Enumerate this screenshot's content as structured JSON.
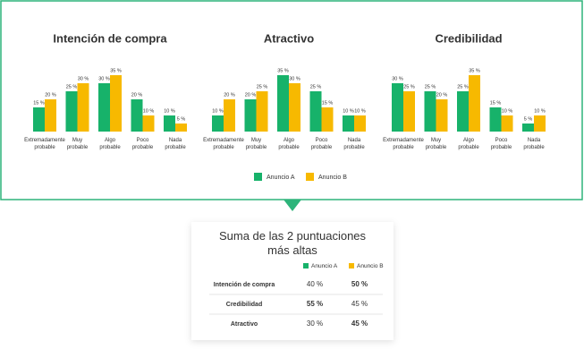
{
  "chart_data": [
    {
      "type": "bar",
      "title": "Intención de compra",
      "categories": [
        "Extremadamente probable",
        "Muy probable",
        "Algo probable",
        "Poco probable",
        "Nada probable"
      ],
      "series": [
        {
          "name": "Anuncio A",
          "color": "#17b26a",
          "values": [
            15,
            25,
            30,
            20,
            10
          ],
          "value_labels": [
            "15 %",
            "25 %",
            "30 %",
            "20 %",
            "10 %"
          ]
        },
        {
          "name": "Anuncio B",
          "color": "#f7b900",
          "values": [
            20,
            30,
            35,
            10,
            5
          ],
          "value_labels": [
            "20 %",
            "30 %",
            "35 %",
            "10 %",
            "5 %"
          ]
        }
      ]
    },
    {
      "type": "bar",
      "title": "Atractivo",
      "categories": [
        "Extremadamente probable",
        "Muy probable",
        "Algo probable",
        "Poco probable",
        "Nada probable"
      ],
      "series": [
        {
          "name": "Anuncio A",
          "color": "#17b26a",
          "values": [
            10,
            20,
            35,
            25,
            10
          ],
          "value_labels": [
            "10 %",
            "20 %",
            "35 %",
            "25 %",
            "10 %"
          ]
        },
        {
          "name": "Anuncio B",
          "color": "#f7b900",
          "values": [
            20,
            25,
            30,
            15,
            10
          ],
          "value_labels": [
            "20 %",
            "25 %",
            "30 %",
            "15 %",
            "10 %"
          ]
        }
      ]
    },
    {
      "type": "bar",
      "title": "Credibilidad",
      "categories": [
        "Extremadamente probable",
        "Muy probable",
        "Algo probable",
        "Poco probable",
        "Nada probable"
      ],
      "series": [
        {
          "name": "Anuncio A",
          "color": "#17b26a",
          "values": [
            30,
            25,
            25,
            15,
            5
          ],
          "value_labels": [
            "30 %",
            "25 %",
            "25 %",
            "15 %",
            "5 %"
          ]
        },
        {
          "name": "Anuncio B",
          "color": "#f7b900",
          "values": [
            25,
            20,
            35,
            10,
            10
          ],
          "value_labels": [
            "25 %",
            "20 %",
            "35 %",
            "10 %",
            "10 %"
          ]
        }
      ]
    }
  ],
  "summary": {
    "title": "Suma de las 2 puntuaciones más altas",
    "highlight_color": "#f26a2e",
    "rows": [
      [
        "Intención de compra",
        "40 %",
        "50 %"
      ],
      [
        "Credibilidad",
        "55 %",
        "45 %"
      ],
      [
        "Atractivo",
        "30 %",
        "45 %"
      ]
    ]
  }
}
